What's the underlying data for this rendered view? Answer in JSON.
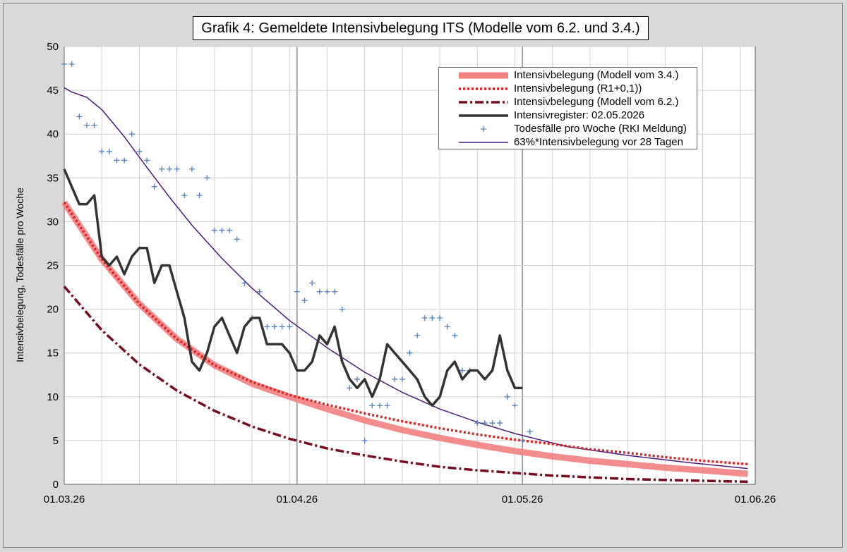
{
  "chart_data": {
    "type": "line",
    "title": "Grafik 4: Gemeldete Intensivbelegung ITS (Modelle vom 6.2. und 3.4.)",
    "ylabel": "Intensivbelegung, Todesfälle pro Woche",
    "xlabel": "",
    "ylim": [
      0,
      50
    ],
    "xlim": [
      "2026-03-01",
      "2026-06-01"
    ],
    "y_ticks": [
      0,
      5,
      10,
      15,
      20,
      25,
      30,
      35,
      40,
      45,
      50
    ],
    "x_ticks": [
      "01.03.26",
      "01.04.26",
      "01.05.26",
      "01.06.26"
    ],
    "grid": true,
    "legend_position": "top-right",
    "series": [
      {
        "name": "Intensivbelegung  (Modell vom 3.4.)",
        "color": "#f28080",
        "style": "thick-solid",
        "x": [
          "2026-03-01",
          "2026-03-06",
          "2026-03-11",
          "2026-03-16",
          "2026-03-21",
          "2026-03-26",
          "2026-03-31",
          "2026-04-05",
          "2026-04-10",
          "2026-04-15",
          "2026-04-20",
          "2026-04-25",
          "2026-04-30",
          "2026-05-05",
          "2026-05-10",
          "2026-05-15",
          "2026-05-20",
          "2026-05-25",
          "2026-05-31"
        ],
        "values": [
          32.2,
          25.7,
          20.6,
          16.6,
          13.6,
          11.5,
          10.0,
          8.6,
          7.3,
          6.2,
          5.3,
          4.5,
          3.8,
          3.2,
          2.7,
          2.3,
          1.9,
          1.6,
          1.2
        ]
      },
      {
        "name": "Intensivbelegung  (R1+0,1))",
        "color": "#e02020",
        "style": "dotted",
        "x": [
          "2026-03-01",
          "2026-03-06",
          "2026-03-11",
          "2026-03-16",
          "2026-03-21",
          "2026-03-26",
          "2026-03-31",
          "2026-04-05",
          "2026-04-10",
          "2026-04-15",
          "2026-04-20",
          "2026-04-25",
          "2026-04-30",
          "2026-05-05",
          "2026-05-10",
          "2026-05-15",
          "2026-05-20",
          "2026-05-25",
          "2026-05-31"
        ],
        "values": [
          32.2,
          25.7,
          20.6,
          16.6,
          13.6,
          11.7,
          10.2,
          9.1,
          8.1,
          7.2,
          6.4,
          5.7,
          5.1,
          4.6,
          4.0,
          3.6,
          3.1,
          2.7,
          2.3
        ]
      },
      {
        "name": "Intensivbelegung  (Modell vom 6.2.)",
        "color": "#7a0a1e",
        "style": "dash-dot",
        "x": [
          "2026-03-01",
          "2026-03-06",
          "2026-03-11",
          "2026-03-16",
          "2026-03-21",
          "2026-03-26",
          "2026-03-31",
          "2026-04-05",
          "2026-04-10",
          "2026-04-15",
          "2026-04-20",
          "2026-04-25",
          "2026-04-30",
          "2026-05-05",
          "2026-05-10",
          "2026-05-15",
          "2026-05-20",
          "2026-05-25",
          "2026-05-31"
        ],
        "values": [
          22.6,
          17.6,
          13.7,
          10.7,
          8.4,
          6.6,
          5.2,
          4.1,
          3.3,
          2.6,
          2.0,
          1.6,
          1.3,
          1.0,
          0.8,
          0.6,
          0.5,
          0.4,
          0.3
        ]
      },
      {
        "name": "Intensivregister: 02.05.2026",
        "color": "#333333",
        "style": "solid",
        "x": [
          "2026-03-01",
          "2026-03-02",
          "2026-03-03",
          "2026-03-04",
          "2026-03-05",
          "2026-03-06",
          "2026-03-07",
          "2026-03-08",
          "2026-03-09",
          "2026-03-10",
          "2026-03-11",
          "2026-03-12",
          "2026-03-13",
          "2026-03-14",
          "2026-03-15",
          "2026-03-16",
          "2026-03-17",
          "2026-03-18",
          "2026-03-19",
          "2026-03-20",
          "2026-03-21",
          "2026-03-22",
          "2026-03-23",
          "2026-03-24",
          "2026-03-25",
          "2026-03-26",
          "2026-03-27",
          "2026-03-28",
          "2026-03-29",
          "2026-03-30",
          "2026-03-31",
          "2026-04-01",
          "2026-04-02",
          "2026-04-03",
          "2026-04-04",
          "2026-04-05",
          "2026-04-06",
          "2026-04-07",
          "2026-04-08",
          "2026-04-09",
          "2026-04-10",
          "2026-04-11",
          "2026-04-12",
          "2026-04-13",
          "2026-04-14",
          "2026-04-15",
          "2026-04-16",
          "2026-04-17",
          "2026-04-18",
          "2026-04-19",
          "2026-04-20",
          "2026-04-21",
          "2026-04-22",
          "2026-04-23",
          "2026-04-24",
          "2026-04-25",
          "2026-04-26",
          "2026-04-27",
          "2026-04-28",
          "2026-04-29",
          "2026-04-30",
          "2026-05-01"
        ],
        "values": [
          36,
          34,
          32,
          32,
          33,
          26,
          25,
          26,
          24,
          26,
          27,
          27,
          23,
          25,
          25,
          22,
          19,
          14,
          13,
          15,
          18,
          19,
          17,
          15,
          18,
          19,
          19,
          16,
          16,
          16,
          15,
          13,
          13,
          14,
          17,
          16,
          18,
          14,
          12,
          11,
          12,
          10,
          12,
          16,
          15,
          14,
          13,
          12,
          10,
          9,
          10,
          13,
          14,
          12,
          13,
          13,
          12,
          13,
          17,
          13,
          11,
          11
        ]
      },
      {
        "name": "Todesfälle pro Woche (RKI Meldung)",
        "color": "#4f81bd",
        "style": "markers",
        "x": [
          "2026-03-01",
          "2026-03-02",
          "2026-03-03",
          "2026-03-04",
          "2026-03-05",
          "2026-03-06",
          "2026-03-07",
          "2026-03-08",
          "2026-03-09",
          "2026-03-10",
          "2026-03-11",
          "2026-03-12",
          "2026-03-13",
          "2026-03-14",
          "2026-03-15",
          "2026-03-16",
          "2026-03-17",
          "2026-03-18",
          "2026-03-19",
          "2026-03-20",
          "2026-03-21",
          "2026-03-22",
          "2026-03-23",
          "2026-03-24",
          "2026-03-25",
          "2026-03-26",
          "2026-03-27",
          "2026-03-28",
          "2026-03-29",
          "2026-03-30",
          "2026-03-31",
          "2026-04-01",
          "2026-04-02",
          "2026-04-03",
          "2026-04-04",
          "2026-04-05",
          "2026-04-06",
          "2026-04-07",
          "2026-04-08",
          "2026-04-09",
          "2026-04-10",
          "2026-04-11",
          "2026-04-12",
          "2026-04-13",
          "2026-04-14",
          "2026-04-15",
          "2026-04-16",
          "2026-04-17",
          "2026-04-18",
          "2026-04-19",
          "2026-04-20",
          "2026-04-21",
          "2026-04-22",
          "2026-04-23",
          "2026-04-24",
          "2026-04-25",
          "2026-04-26",
          "2026-04-27",
          "2026-04-28",
          "2026-04-29",
          "2026-04-30",
          "2026-05-01",
          "2026-05-02"
        ],
        "values": [
          48,
          48,
          42,
          41,
          41,
          38,
          38,
          37,
          37,
          40,
          38,
          37,
          34,
          36,
          36,
          36,
          33,
          36,
          33,
          35,
          29,
          29,
          29,
          28,
          23,
          19,
          22,
          18,
          18,
          18,
          18,
          22,
          21,
          23,
          22,
          22,
          22,
          20,
          11,
          12,
          5,
          9,
          9,
          9,
          12,
          12,
          15,
          17,
          19,
          19,
          19,
          18,
          17,
          13,
          13,
          7,
          7,
          7,
          7,
          10,
          9,
          5,
          6
        ]
      },
      {
        "name": "63%*Intensivbelegung vor 28 Tagen",
        "color": "#4b1a7a",
        "style": "thin-solid",
        "x": [
          "2026-03-01",
          "2026-03-02",
          "2026-03-04",
          "2026-03-06",
          "2026-03-09",
          "2026-03-12",
          "2026-03-15",
          "2026-03-18",
          "2026-03-22",
          "2026-03-26",
          "2026-03-31",
          "2026-04-05",
          "2026-04-10",
          "2026-04-15",
          "2026-04-20",
          "2026-04-25",
          "2026-04-30",
          "2026-05-07",
          "2026-05-15",
          "2026-05-23",
          "2026-05-31"
        ],
        "values": [
          45.3,
          44.8,
          44.2,
          42.8,
          39.7,
          36.2,
          32.8,
          29.6,
          25.8,
          22.4,
          18.7,
          15.6,
          12.8,
          10.5,
          8.6,
          7.1,
          5.8,
          4.3,
          3.3,
          2.5,
          1.8
        ]
      }
    ]
  }
}
